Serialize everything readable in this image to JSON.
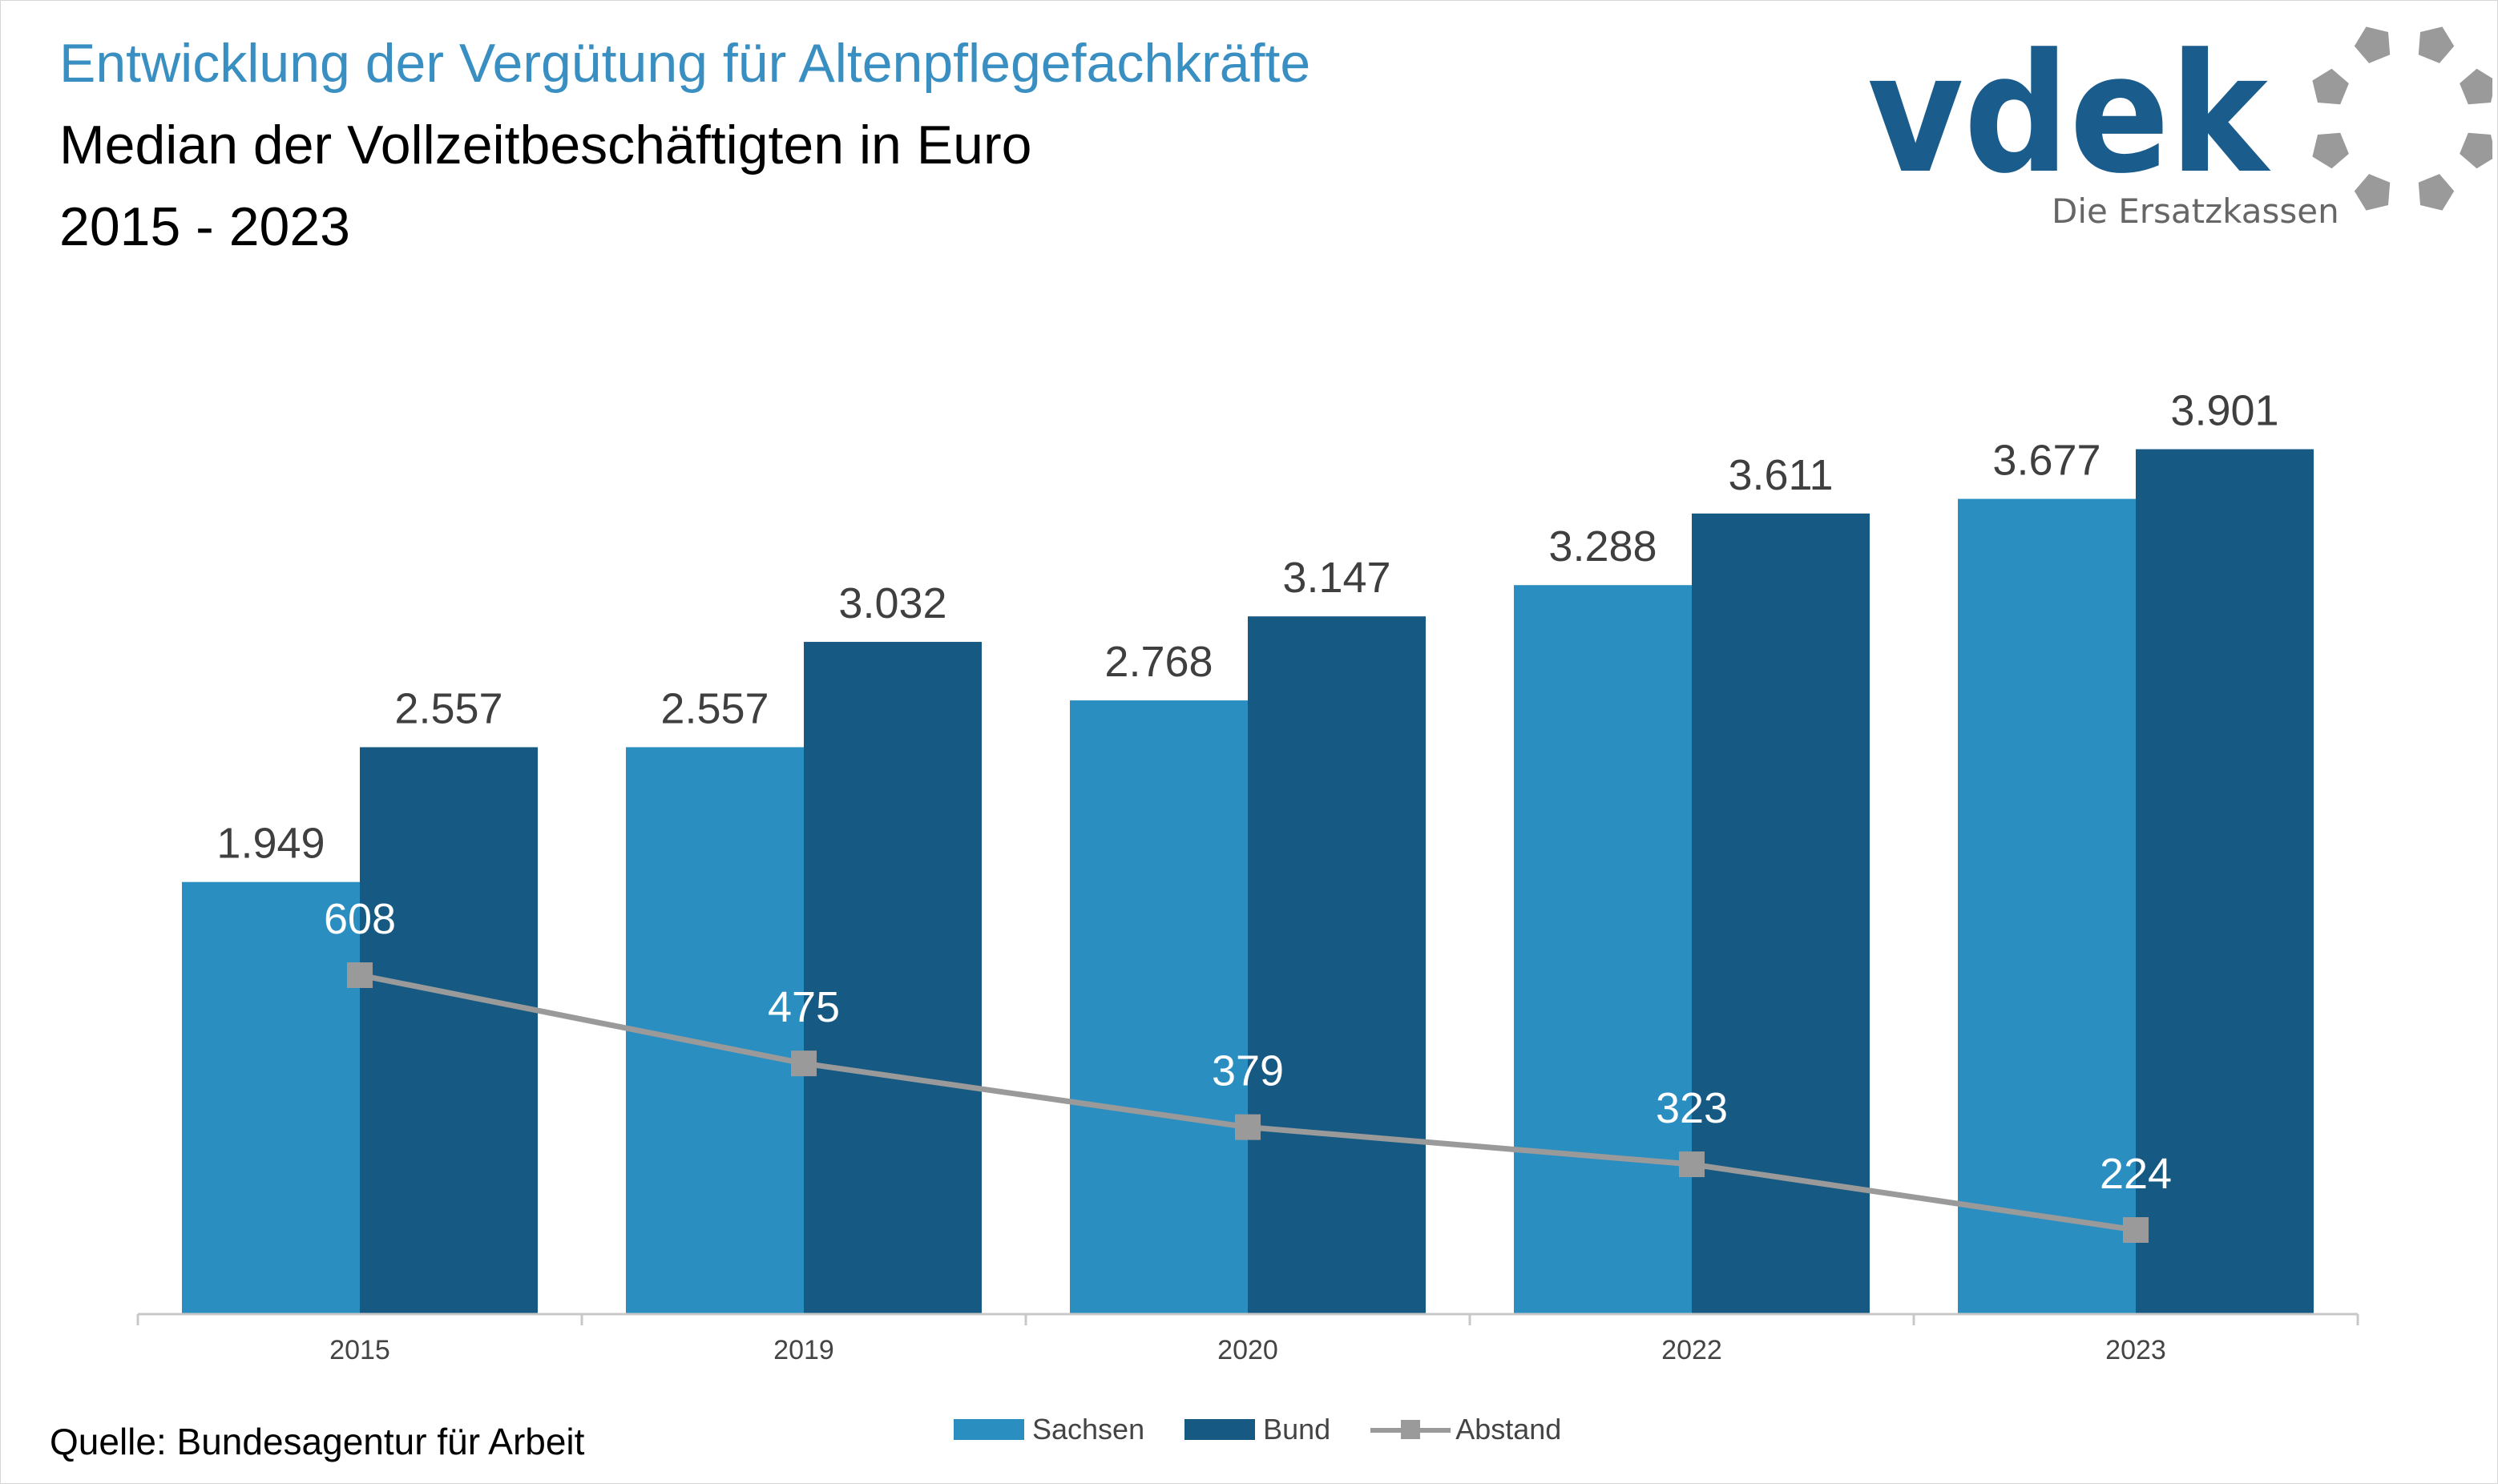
{
  "header": {
    "title": "Entwicklung der Vergütung für Altenpflegefachkräfte",
    "subtitle": "Median der Vollzeitbeschäftigten in Euro",
    "period": "2015 - 2023"
  },
  "logo": {
    "wordmark": "vdek",
    "tagline": "Die Ersatzkassen",
    "color": "#1a5c8c",
    "tagline_color": "#666666",
    "ring_color": "#9a9a9a"
  },
  "source": "Quelle: Bundesagentur für Arbeit",
  "colors": {
    "sachsen": "#2b8ec0",
    "bund": "#165a84",
    "abstand": "#9a9a9a"
  },
  "chart_data": {
    "type": "bar",
    "title": "Entwicklung der Vergütung für Altenpflegefachkräfte",
    "categories": [
      "2015",
      "2019",
      "2020",
      "2022",
      "2023"
    ],
    "series": [
      {
        "name": "Sachsen",
        "type": "bar",
        "values": [
          1949,
          2557,
          2768,
          3288,
          3677
        ],
        "labels": [
          "1.949",
          "2.557",
          "2.768",
          "3.288",
          "3.677"
        ]
      },
      {
        "name": "Bund",
        "type": "bar",
        "values": [
          2557,
          3032,
          3147,
          3611,
          3901
        ],
        "labels": [
          "2.557",
          "3.032",
          "3.147",
          "3.611",
          "3.901"
        ]
      },
      {
        "name": "Abstand",
        "type": "line",
        "values": [
          608,
          475,
          379,
          323,
          224
        ],
        "labels": [
          "608",
          "475",
          "379",
          "323",
          "224"
        ]
      }
    ],
    "ylim": [
      0,
      4000
    ],
    "grid": false,
    "legend_position": "bottom-center"
  }
}
